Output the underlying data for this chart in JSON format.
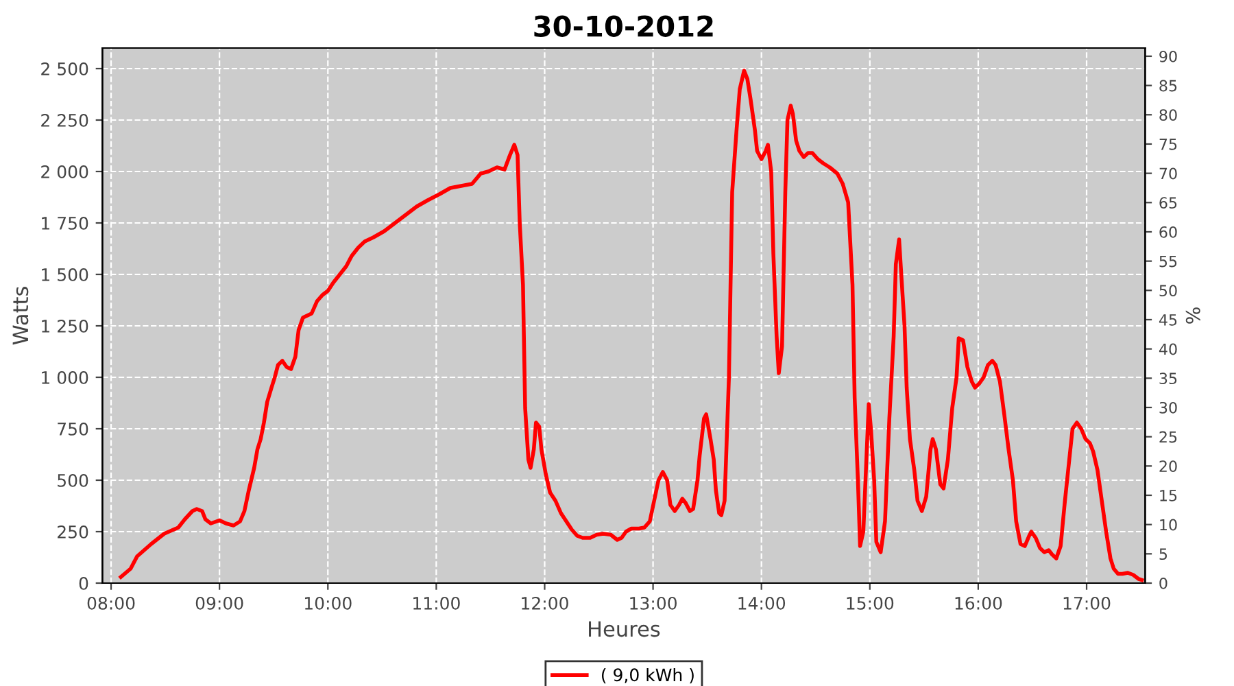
{
  "chart_data": {
    "type": "line",
    "title": "30-10-2012",
    "xlabel": "Heures",
    "ylabel": "Watts",
    "y2label": "%",
    "xlim": [
      7.92,
      17.54
    ],
    "ylim": [
      0,
      2600
    ],
    "y2lim": [
      0,
      91.4
    ],
    "xticks": [
      {
        "value": 8,
        "label": "08:00"
      },
      {
        "value": 9,
        "label": "09:00"
      },
      {
        "value": 10,
        "label": "10:00"
      },
      {
        "value": 11,
        "label": "11:00"
      },
      {
        "value": 12,
        "label": "12:00"
      },
      {
        "value": 13,
        "label": "13:00"
      },
      {
        "value": 14,
        "label": "14:00"
      },
      {
        "value": 15,
        "label": "15:00"
      },
      {
        "value": 16,
        "label": "16:00"
      },
      {
        "value": 17,
        "label": "17:00"
      }
    ],
    "yticks": [
      0,
      250,
      500,
      750,
      {
        "value": 1000,
        "label": "1 000"
      },
      {
        "value": 1250,
        "label": "1 250"
      },
      {
        "value": 1500,
        "label": "1 500"
      },
      {
        "value": 1750,
        "label": "1 750"
      },
      {
        "value": 2000,
        "label": "2 000"
      },
      {
        "value": 2250,
        "label": "2 250"
      },
      {
        "value": 2500,
        "label": "2 500"
      }
    ],
    "y2ticks": [
      0,
      5,
      10,
      15,
      20,
      25,
      30,
      35,
      40,
      45,
      50,
      55,
      60,
      65,
      70,
      75,
      80,
      85,
      90
    ],
    "grid": true,
    "legend": "bottom",
    "marker": "none",
    "line_style": "solid",
    "series": [
      {
        "name": "( 9,0 kWh )",
        "color": "#ff0000",
        "x": [
          8.09,
          8.18,
          8.24,
          8.37,
          8.49,
          8.62,
          8.68,
          8.75,
          8.79,
          8.84,
          8.87,
          8.92,
          9.0,
          9.06,
          9.13,
          9.19,
          9.23,
          9.27,
          9.32,
          9.35,
          9.38,
          9.41,
          9.44,
          9.48,
          9.51,
          9.54,
          9.58,
          9.62,
          9.66,
          9.7,
          9.73,
          9.77,
          9.81,
          9.85,
          9.9,
          9.95,
          10.0,
          10.05,
          10.11,
          10.17,
          10.22,
          10.28,
          10.34,
          10.42,
          10.52,
          10.62,
          10.72,
          10.82,
          10.92,
          11.03,
          11.13,
          11.23,
          11.33,
          11.41,
          11.48,
          11.56,
          11.63,
          11.68,
          11.72,
          11.75,
          11.77,
          11.8,
          11.82,
          11.85,
          11.87,
          11.9,
          11.92,
          11.95,
          11.97,
          12.01,
          12.05,
          12.1,
          12.15,
          12.2,
          12.25,
          12.3,
          12.35,
          12.42,
          12.48,
          12.54,
          12.61,
          12.67,
          12.71,
          12.75,
          12.8,
          12.87,
          12.92,
          12.97,
          13.01,
          13.05,
          13.09,
          13.13,
          13.16,
          13.2,
          13.24,
          13.27,
          13.3,
          13.34,
          13.37,
          13.41,
          13.43,
          13.47,
          13.49,
          13.53,
          13.56,
          13.58,
          13.61,
          13.63,
          13.66,
          13.7,
          13.73,
          13.77,
          13.8,
          13.84,
          13.87,
          13.9,
          13.94,
          13.96,
          14.0,
          14.04,
          14.06,
          14.09,
          14.11,
          14.14,
          14.16,
          14.19,
          14.22,
          14.24,
          14.27,
          14.29,
          14.32,
          14.35,
          14.39,
          14.43,
          14.47,
          14.52,
          14.57,
          14.63,
          14.7,
          14.75,
          14.8,
          14.84,
          14.86,
          14.89,
          14.91,
          14.94,
          14.96,
          14.99,
          15.01,
          15.04,
          15.06,
          15.1,
          15.14,
          15.18,
          15.22,
          15.24,
          15.27,
          15.29,
          15.32,
          15.34,
          15.37,
          15.41,
          15.44,
          15.48,
          15.52,
          15.56,
          15.58,
          15.61,
          15.65,
          15.68,
          15.72,
          15.76,
          15.8,
          15.82,
          15.86,
          15.9,
          15.94,
          15.97,
          16.01,
          16.05,
          16.09,
          16.13,
          16.16,
          16.2,
          16.24,
          16.28,
          16.32,
          16.35,
          16.39,
          16.43,
          16.47,
          16.49,
          16.53,
          16.57,
          16.61,
          16.65,
          16.68,
          16.72,
          16.76,
          16.8,
          16.84,
          16.87,
          16.91,
          16.95,
          16.99,
          17.03,
          17.06,
          17.1,
          17.14,
          17.18,
          17.22,
          17.25,
          17.29,
          17.33,
          17.38,
          17.43,
          17.48,
          17.51
        ],
        "values": [
          30,
          70,
          130,
          190,
          240,
          270,
          310,
          350,
          360,
          350,
          310,
          290,
          305,
          290,
          280,
          300,
          350,
          450,
          560,
          650,
          700,
          780,
          880,
          950,
          1000,
          1060,
          1080,
          1050,
          1040,
          1100,
          1230,
          1290,
          1300,
          1310,
          1370,
          1400,
          1420,
          1460,
          1500,
          1540,
          1590,
          1630,
          1660,
          1680,
          1710,
          1750,
          1790,
          1830,
          1860,
          1890,
          1920,
          1930,
          1940,
          1990,
          2000,
          2020,
          2010,
          2080,
          2130,
          2080,
          1750,
          1450,
          850,
          600,
          560,
          650,
          780,
          760,
          650,
          530,
          440,
          400,
          340,
          300,
          260,
          230,
          220,
          220,
          235,
          240,
          235,
          210,
          220,
          250,
          265,
          265,
          270,
          300,
          400,
          500,
          540,
          500,
          380,
          350,
          380,
          410,
          390,
          350,
          360,
          500,
          620,
          800,
          820,
          700,
          600,
          450,
          340,
          330,
          400,
          1000,
          1900,
          2200,
          2400,
          2490,
          2450,
          2350,
          2200,
          2100,
          2060,
          2100,
          2130,
          2000,
          1600,
          1200,
          1020,
          1150,
          1900,
          2250,
          2320,
          2280,
          2150,
          2100,
          2070,
          2090,
          2090,
          2060,
          2040,
          2020,
          1990,
          1940,
          1850,
          1450,
          900,
          500,
          180,
          250,
          500,
          870,
          750,
          500,
          200,
          150,
          300,
          800,
          1200,
          1550,
          1670,
          1500,
          1250,
          950,
          700,
          550,
          400,
          350,
          420,
          650,
          700,
          650,
          480,
          460,
          600,
          850,
          1000,
          1190,
          1180,
          1050,
          980,
          950,
          970,
          1000,
          1060,
          1080,
          1060,
          980,
          820,
          650,
          500,
          300,
          190,
          180,
          230,
          250,
          220,
          170,
          150,
          160,
          140,
          120,
          180,
          400,
          600,
          750,
          780,
          750,
          700,
          680,
          640,
          550,
          400,
          250,
          120,
          70,
          45,
          45,
          50,
          40,
          20,
          15
        ]
      }
    ]
  }
}
